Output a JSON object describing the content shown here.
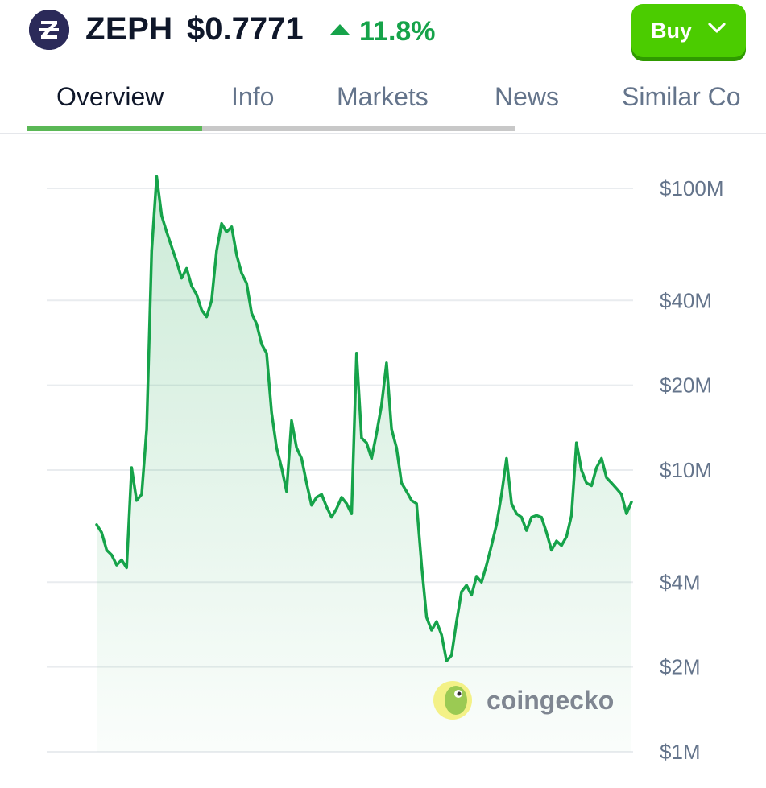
{
  "header": {
    "symbol": "ZEPH",
    "price": "$0.7771",
    "change": "11.8%",
    "change_direction": "up",
    "logo_icon": "zephyr-z-logo-icon",
    "buy_label": "Buy",
    "buy_icon": "chevron-down-icon"
  },
  "tabs": [
    {
      "label": "Overview",
      "active": true
    },
    {
      "label": "Info",
      "active": false
    },
    {
      "label": "Markets",
      "active": false
    },
    {
      "label": "News",
      "active": false
    },
    {
      "label": "Similar Co",
      "active": false
    }
  ],
  "colors": {
    "up": "#16a34a",
    "buy": "#4bcc00",
    "line": "#16a34a",
    "logo_bg": "#2b2a59"
  },
  "watermark": {
    "text": "coingecko",
    "icon": "coingecko-gecko-icon"
  },
  "chart_data": {
    "type": "area",
    "title": "",
    "xlabel": "",
    "ylabel": "",
    "y_scale": "log",
    "ylim": [
      1000000,
      100000000
    ],
    "y_ticks": [
      {
        "value": 100000000,
        "label": "$100M"
      },
      {
        "value": 40000000,
        "label": "$40M"
      },
      {
        "value": 20000000,
        "label": "$20M"
      },
      {
        "value": 10000000,
        "label": "$10M"
      },
      {
        "value": 4000000,
        "label": "$4M"
      },
      {
        "value": 2000000,
        "label": "$2M"
      },
      {
        "value": 1000000,
        "label": "$1M"
      }
    ],
    "grid": true,
    "x_labels": [],
    "series": [
      {
        "values": [
          6400000,
          6000000,
          5200000,
          5000000,
          4600000,
          4800000,
          4500000,
          10200000,
          7800000,
          8200000,
          14000000,
          60000000,
          110000000,
          80000000,
          70000000,
          62000000,
          55000000,
          48000000,
          52000000,
          45000000,
          42000000,
          37000000,
          35000000,
          40000000,
          60000000,
          75000000,
          70000000,
          73000000,
          58000000,
          50000000,
          46000000,
          36000000,
          33000000,
          28000000,
          26000000,
          16000000,
          12000000,
          10200000,
          8400000,
          15000000,
          12000000,
          11000000,
          9000000,
          7500000,
          8000000,
          8200000,
          7400000,
          6800000,
          7300000,
          8000000,
          7600000,
          7000000,
          26000000,
          13000000,
          12500000,
          11000000,
          13500000,
          17000000,
          24000000,
          14000000,
          12000000,
          9000000,
          8400000,
          7800000,
          7600000,
          4600000,
          3000000,
          2700000,
          2900000,
          2600000,
          2100000,
          2200000,
          2900000,
          3700000,
          3900000,
          3600000,
          4200000,
          4000000,
          4600000,
          5400000,
          6400000,
          8200000,
          11000000,
          7600000,
          7000000,
          6800000,
          6100000,
          6800000,
          6900000,
          6800000,
          6000000,
          5200000,
          5600000,
          5400000,
          5800000,
          6900000,
          12500000,
          10000000,
          9000000,
          8800000,
          10200000,
          11000000,
          9400000,
          9000000,
          8600000,
          8200000,
          7000000,
          7700000
        ]
      }
    ]
  }
}
